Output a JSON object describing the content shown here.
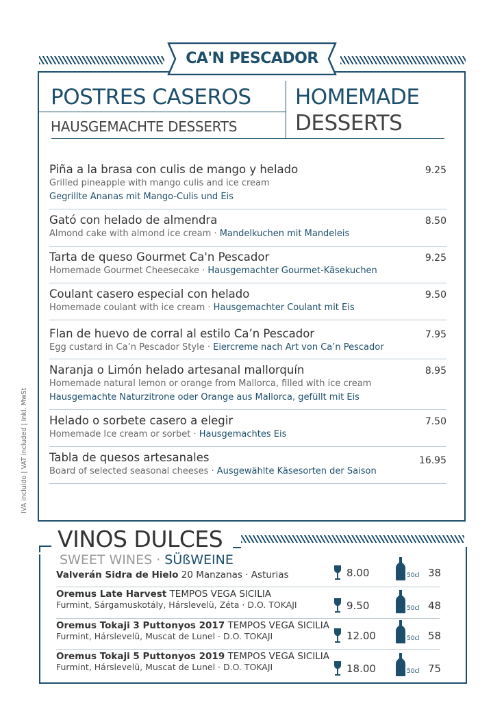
{
  "brand": "CA'N PESCADOR",
  "header": {
    "title_es": "POSTRES CASEROS",
    "title_de": "HAUSGEMACHTE DESSERTS",
    "title_en_1": "HOMEMADE",
    "title_en_2": "DESSERTS"
  },
  "desserts": [
    {
      "name": "Piña a la brasa con culis de mango y helado",
      "en": "Grilled pineapple with mango culis and  ice cream",
      "de": "Gegrillte Ananas mit Mango-Culis und Eis",
      "price": "9.25"
    },
    {
      "name": "Gató con helado de almendra",
      "en": "Almond cake with almond ice cream · ",
      "de": "Mandelkuchen mit Mandeleis",
      "price": "8.50"
    },
    {
      "name": "Tarta de queso Gourmet Ca'n Pescador",
      "en": "Homemade Gourmet Cheesecake · ",
      "de": "Hausgemachter Gourmet-Käsekuchen",
      "price": "9.25"
    },
    {
      "name": "Coulant casero especial con helado",
      "en": "Homemade coulant with ice cream · ",
      "de": "Hausgemachter Coulant mit Eis",
      "price": "9.50"
    },
    {
      "name": "Flan de huevo de corral al estilo Ca’n Pescador",
      "en": "Egg custard in Ca’n Pescador Style · ",
      "de": "Eiercreme nach Art von Ca’n Pescador",
      "price": "7.95"
    },
    {
      "name": "Naranja o Limón helado artesanal mallorquín",
      "en": "Homemade natural lemon or orange from Mallorca, filled with ice cream",
      "de": "Hausgemachte Naturzitrone oder Orange aus Mallorca, gefüllt mit Eis",
      "price": "8.95"
    },
    {
      "name": "Helado o sorbete casero a elegir",
      "en": "Homemade Ice cream or sorbet · ",
      "de": "Hausgemachtes Eis",
      "price": "7.50"
    },
    {
      "name": "Tabla de quesos artesanales",
      "en": "Board of selected seasonal cheeses · ",
      "de": "Ausgewählte Käsesorten der Saison",
      "price": "16.95"
    }
  ],
  "tax_note": "IVA incluido | VAT included | Inkl. MwSt",
  "wines": {
    "title": "VINOS DULCES",
    "subtitle_en": "SWEET WINES · ",
    "subtitle_de": "SÜßWEINE",
    "bottle_size": "50cl",
    "items": [
      {
        "name": "Valverán Sidra de Hielo",
        "producer": " 20 Manzanas · Asturias",
        "details": "",
        "glass": "8.00",
        "bottle": "38"
      },
      {
        "name": "Oremus Late Harvest",
        "producer": " TEMPOS VEGA SICILIA",
        "details": "Furmint, Sárgamuskotály, Hárslevelü, Zéta · D.O. TOKAJI",
        "glass": "9.50",
        "bottle": "48"
      },
      {
        "name": "Oremus Tokaji 3 Puttonyos 2017",
        "producer": " TEMPOS VEGA SICILIA",
        "details": "Furmint, Hárslevelü, Muscat de Lunel · D.O. TOKAJI",
        "glass": "12.00",
        "bottle": "58"
      },
      {
        "name": "Oremus Tokaji 5 Puttonyos 2019",
        "producer": " TEMPOS VEGA SICILIA",
        "details": "Furmint, Hárslevelü, Muscat de Lunel · D.O. TOKAJI",
        "glass": "18.00",
        "bottle": "75"
      }
    ]
  },
  "colors": {
    "accent": "#1d4e6b",
    "separator": "#b8c6d0"
  }
}
